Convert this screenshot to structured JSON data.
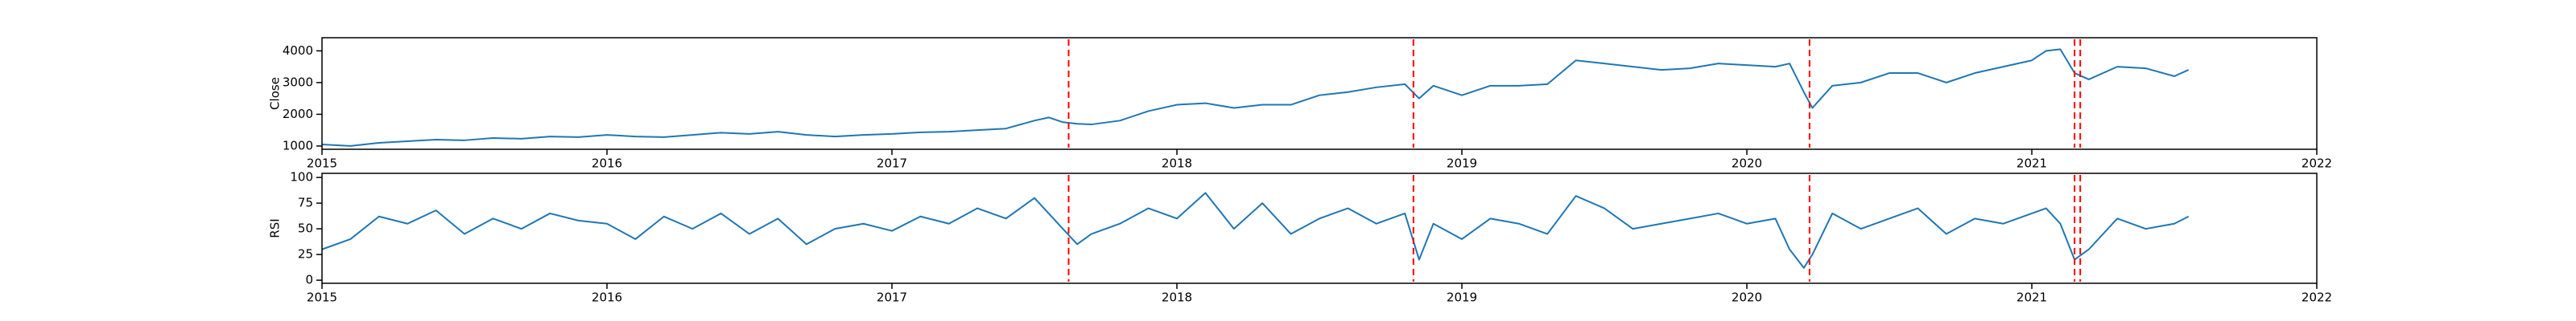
{
  "chart_data": [
    {
      "type": "line",
      "y_label": "Close",
      "x": [
        2015,
        2015.1,
        2015.2,
        2015.3,
        2015.4,
        2015.5,
        2015.6,
        2015.7,
        2015.8,
        2015.9,
        2016,
        2016.1,
        2016.2,
        2016.3,
        2016.4,
        2016.5,
        2016.6,
        2016.7,
        2016.8,
        2016.9,
        2017,
        2017.1,
        2017.2,
        2017.3,
        2017.4,
        2017.5,
        2017.55,
        2017.6,
        2017.65,
        2017.7,
        2017.8,
        2017.9,
        2018,
        2018.1,
        2018.2,
        2018.3,
        2018.4,
        2018.5,
        2018.6,
        2018.7,
        2018.8,
        2018.85,
        2018.9,
        2019,
        2019.1,
        2019.2,
        2019.3,
        2019.4,
        2019.5,
        2019.6,
        2019.7,
        2019.8,
        2019.9,
        2020,
        2020.1,
        2020.15,
        2020.2,
        2020.23,
        2020.3,
        2020.4,
        2020.5,
        2020.6,
        2020.7,
        2020.8,
        2020.9,
        2021,
        2021.05,
        2021.1,
        2021.15,
        2021.2,
        2021.3,
        2021.4,
        2021.5,
        2021.55
      ],
      "series": [
        {
          "color": "#1f77b4",
          "values": [
            1050,
            1000,
            1100,
            1150,
            1200,
            1180,
            1250,
            1230,
            1300,
            1280,
            1350,
            1300,
            1280,
            1350,
            1420,
            1380,
            1450,
            1350,
            1300,
            1350,
            1380,
            1430,
            1450,
            1500,
            1550,
            1800,
            1900,
            1750,
            1700,
            1680,
            1800,
            2100,
            2300,
            2350,
            2200,
            2300,
            2300,
            2600,
            2700,
            2850,
            2950,
            2500,
            2900,
            2600,
            2900,
            2900,
            2950,
            3700,
            3600,
            3500,
            3400,
            3450,
            3600,
            3550,
            3500,
            3600,
            2700,
            2200,
            2900,
            3000,
            3300,
            3300,
            3000,
            3300,
            3500,
            3700,
            4000,
            4050,
            3300,
            3100,
            3500,
            3450,
            3200,
            3400
          ]
        }
      ],
      "vlines": {
        "x": [
          2017.62,
          2018.83,
          2020.22,
          2021.15,
          2021.17
        ],
        "color": "red"
      },
      "xlim": [
        2015,
        2022
      ],
      "xticks": [
        2015,
        2016,
        2017,
        2018,
        2019,
        2020,
        2021,
        2022
      ],
      "ylim": [
        897,
        4414
      ],
      "yticks": [
        1000,
        2000,
        3000,
        4000
      ]
    },
    {
      "type": "line",
      "y_label": "RSI",
      "x": [
        2015,
        2015.1,
        2015.2,
        2015.3,
        2015.4,
        2015.5,
        2015.6,
        2015.7,
        2015.8,
        2015.9,
        2016,
        2016.1,
        2016.2,
        2016.3,
        2016.4,
        2016.5,
        2016.6,
        2016.7,
        2016.8,
        2016.9,
        2017,
        2017.1,
        2017.2,
        2017.3,
        2017.4,
        2017.5,
        2017.55,
        2017.6,
        2017.65,
        2017.7,
        2017.8,
        2017.9,
        2018,
        2018.1,
        2018.2,
        2018.3,
        2018.4,
        2018.5,
        2018.6,
        2018.7,
        2018.8,
        2018.85,
        2018.9,
        2019,
        2019.1,
        2019.2,
        2019.3,
        2019.4,
        2019.5,
        2019.6,
        2019.7,
        2019.8,
        2019.9,
        2020,
        2020.1,
        2020.15,
        2020.2,
        2020.23,
        2020.3,
        2020.4,
        2020.5,
        2020.6,
        2020.7,
        2020.8,
        2020.9,
        2021,
        2021.05,
        2021.1,
        2021.15,
        2021.2,
        2021.3,
        2021.4,
        2021.5,
        2021.55
      ],
      "series": [
        {
          "color": "#1f77b4",
          "values": [
            30,
            40,
            62,
            55,
            68,
            45,
            60,
            50,
            65,
            58,
            55,
            40,
            62,
            50,
            65,
            45,
            60,
            35,
            50,
            55,
            48,
            62,
            55,
            70,
            60,
            80,
            65,
            50,
            35,
            45,
            55,
            70,
            60,
            85,
            50,
            75,
            45,
            60,
            70,
            55,
            65,
            20,
            55,
            40,
            60,
            55,
            45,
            82,
            70,
            50,
            55,
            60,
            65,
            55,
            60,
            30,
            12,
            25,
            65,
            50,
            60,
            70,
            45,
            60,
            55,
            65,
            70,
            55,
            20,
            30,
            60,
            50,
            55,
            62
          ]
        }
      ],
      "vlines": {
        "x": [
          2017.62,
          2018.83,
          2020.22,
          2021.15,
          2021.17
        ],
        "color": "red"
      },
      "xlim": [
        2015,
        2022
      ],
      "xticks": [
        2015,
        2016,
        2017,
        2018,
        2019,
        2020,
        2021,
        2022
      ],
      "ylim": [
        -3,
        104
      ],
      "yticks": [
        0,
        25,
        50,
        75,
        100
      ]
    }
  ]
}
